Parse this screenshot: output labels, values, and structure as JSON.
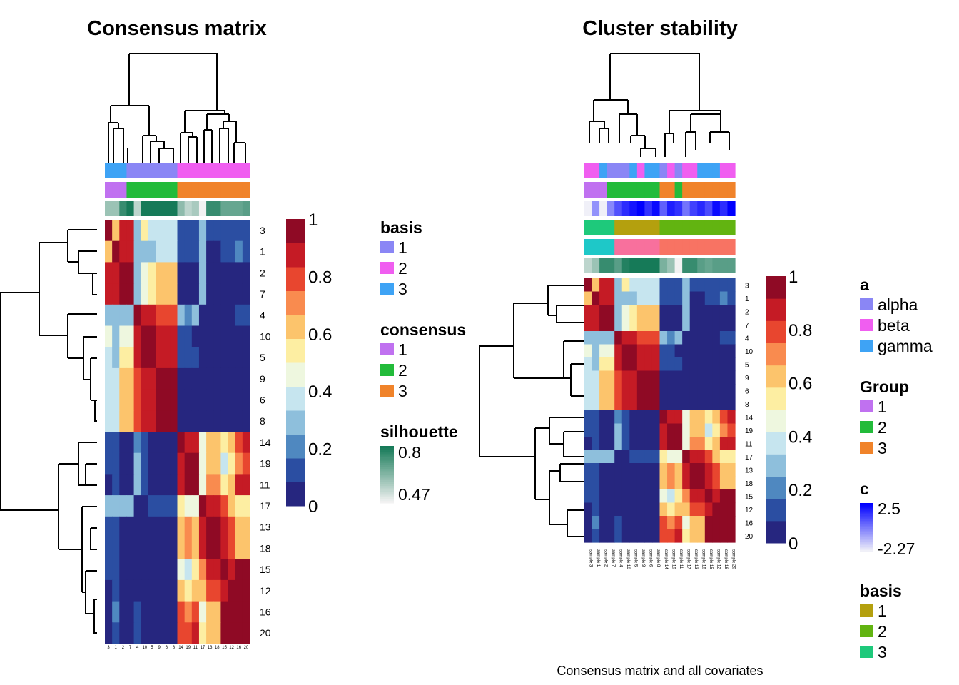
{
  "figure": {
    "caption": "Consensus matrix and all covariates"
  },
  "palettes": {
    "consensus": [
      "#26267f",
      "#2b4ea2",
      "#4f88c0",
      "#8ebfdc",
      "#c6e5ef",
      "#eef7df",
      "#fdeea2",
      "#fcc46c",
      "#f98b4f",
      "#e8462f",
      "#c51b25",
      "#8f0a25"
    ],
    "silhouette_low": "#f2f2f2",
    "silhouette_high": "#167a58",
    "c_low": "#f0f0f8",
    "c_high": "#0000ff"
  },
  "chart_data": [
    {
      "type": "heatmap",
      "title": "Consensus matrix",
      "row_order": [
        3,
        1,
        2,
        7,
        4,
        10,
        5,
        9,
        6,
        8,
        14,
        19,
        11,
        17,
        13,
        18,
        15,
        12,
        16,
        20
      ],
      "col_labels": [
        "3",
        "1",
        "2",
        "7",
        "4",
        "10",
        "5",
        "9",
        "6",
        "8",
        "14",
        "19",
        "11",
        "17",
        "13",
        "18",
        "15",
        "12",
        "16",
        "20"
      ],
      "value_range": [
        0,
        1
      ],
      "annotations": {
        "basis": [
          3,
          3,
          3,
          1,
          1,
          1,
          1,
          1,
          1,
          1,
          2,
          2,
          2,
          2,
          2,
          2,
          2,
          2,
          2,
          2
        ],
        "consensus": [
          1,
          1,
          1,
          2,
          2,
          2,
          2,
          2,
          2,
          2,
          3,
          3,
          3,
          3,
          3,
          3,
          3,
          3,
          3,
          3
        ],
        "silhouette": [
          0.6,
          0.6,
          0.75,
          0.8,
          0.55,
          0.8,
          0.8,
          0.8,
          0.8,
          0.8,
          0.62,
          0.55,
          0.58,
          0.47,
          0.75,
          0.75,
          0.68,
          0.68,
          0.68,
          0.7
        ]
      },
      "matrix": [
        [
          1.0,
          0.65,
          0.9,
          0.9,
          0.3,
          0.5,
          0.35,
          0.35,
          0.35,
          0.35,
          0.1,
          0.1,
          0.1,
          0.3,
          0.1,
          0.1,
          0.1,
          0.1,
          0.1,
          0.1
        ],
        [
          0.65,
          1.0,
          0.9,
          0.9,
          0.3,
          0.3,
          0.3,
          0.35,
          0.35,
          0.35,
          0.1,
          0.1,
          0.1,
          0.3,
          0.05,
          0.05,
          0.1,
          0.1,
          0.2,
          0.1
        ],
        [
          0.9,
          0.9,
          1.0,
          1.0,
          0.3,
          0.45,
          0.5,
          0.6,
          0.6,
          0.6,
          0.05,
          0.05,
          0.05,
          0.3,
          0.0,
          0.0,
          0.0,
          0.0,
          0.0,
          0.0
        ],
        [
          0.9,
          0.9,
          1.0,
          1.0,
          0.3,
          0.45,
          0.5,
          0.6,
          0.6,
          0.6,
          0.05,
          0.05,
          0.05,
          0.3,
          0.0,
          0.0,
          0.0,
          0.0,
          0.0,
          0.0
        ],
        [
          0.3,
          0.3,
          0.3,
          0.3,
          1.0,
          0.9,
          0.9,
          0.75,
          0.75,
          0.75,
          0.3,
          0.2,
          0.3,
          0.05,
          0.05,
          0.05,
          0.05,
          0.05,
          0.15,
          0.15
        ],
        [
          0.45,
          0.3,
          0.45,
          0.45,
          0.9,
          1.0,
          0.95,
          0.9,
          0.9,
          0.9,
          0.1,
          0.1,
          0.05,
          0.0,
          0.0,
          0.0,
          0.0,
          0.0,
          0.0,
          0.0
        ],
        [
          0.35,
          0.3,
          0.5,
          0.5,
          0.9,
          0.95,
          1.0,
          0.9,
          0.9,
          0.9,
          0.1,
          0.1,
          0.1,
          0.0,
          0.0,
          0.0,
          0.0,
          0.0,
          0.0,
          0.0
        ],
        [
          0.35,
          0.35,
          0.6,
          0.6,
          0.75,
          0.9,
          0.9,
          1.0,
          1.0,
          1.0,
          0.0,
          0.0,
          0.0,
          0.0,
          0.0,
          0.0,
          0.0,
          0.0,
          0.0,
          0.0
        ],
        [
          0.35,
          0.35,
          0.6,
          0.6,
          0.75,
          0.9,
          0.9,
          1.0,
          1.0,
          1.0,
          0.0,
          0.0,
          0.0,
          0.0,
          0.0,
          0.0,
          0.0,
          0.0,
          0.0,
          0.0
        ],
        [
          0.35,
          0.35,
          0.6,
          0.6,
          0.75,
          0.9,
          0.9,
          1.0,
          1.0,
          1.0,
          0.0,
          0.0,
          0.0,
          0.0,
          0.0,
          0.0,
          0.0,
          0.0,
          0.0,
          0.0
        ],
        [
          0.1,
          0.1,
          0.0,
          0.0,
          0.2,
          0.1,
          0.0,
          0.0,
          0.0,
          0.0,
          1.0,
          0.9,
          0.9,
          0.45,
          0.65,
          0.65,
          0.5,
          0.65,
          0.8,
          0.85
        ],
        [
          0.1,
          0.1,
          0.0,
          0.0,
          0.3,
          0.15,
          0.0,
          0.0,
          0.0,
          0.0,
          0.9,
          1.0,
          0.95,
          0.45,
          0.65,
          0.65,
          0.35,
          0.55,
          0.7,
          0.8
        ],
        [
          0.05,
          0.1,
          0.0,
          0.0,
          0.25,
          0.1,
          0.0,
          0.0,
          0.0,
          0.0,
          0.9,
          0.95,
          1.0,
          0.45,
          0.7,
          0.7,
          0.5,
          0.65,
          0.85,
          0.85
        ],
        [
          0.25,
          0.25,
          0.25,
          0.25,
          0.05,
          0.05,
          0.15,
          0.15,
          0.15,
          0.15,
          0.5,
          0.45,
          0.45,
          1.0,
          0.85,
          0.85,
          0.75,
          0.65,
          0.55,
          0.55
        ],
        [
          0.1,
          0.1,
          0.0,
          0.0,
          0.0,
          0.0,
          0.0,
          0.0,
          0.0,
          0.0,
          0.65,
          0.7,
          0.65,
          0.85,
          1.0,
          1.0,
          0.85,
          0.75,
          0.65,
          0.65
        ],
        [
          0.1,
          0.1,
          0.0,
          0.0,
          0.0,
          0.0,
          0.0,
          0.0,
          0.0,
          0.0,
          0.65,
          0.7,
          0.65,
          0.85,
          1.0,
          1.0,
          0.85,
          0.75,
          0.65,
          0.65
        ],
        [
          0.1,
          0.1,
          0.0,
          0.0,
          0.0,
          0.0,
          0.0,
          0.0,
          0.0,
          0.0,
          0.45,
          0.35,
          0.5,
          0.7,
          0.85,
          0.85,
          1.0,
          0.9,
          0.95,
          0.95
        ],
        [
          0.05,
          0.1,
          0.0,
          0.0,
          0.0,
          0.0,
          0.0,
          0.0,
          0.0,
          0.0,
          0.6,
          0.55,
          0.65,
          0.65,
          0.75,
          0.75,
          0.9,
          1.0,
          0.95,
          0.95
        ],
        [
          0.05,
          0.2,
          0.0,
          0.0,
          0.1,
          0.0,
          0.0,
          0.0,
          0.0,
          0.0,
          0.75,
          0.7,
          0.8,
          0.45,
          0.65,
          0.65,
          0.95,
          0.95,
          1.0,
          1.0
        ],
        [
          0.05,
          0.1,
          0.0,
          0.0,
          0.1,
          0.0,
          0.0,
          0.0,
          0.0,
          0.0,
          0.8,
          0.75,
          0.85,
          0.55,
          0.65,
          0.65,
          0.95,
          0.95,
          1.0,
          1.0
        ]
      ],
      "colorbar": {
        "ticks": [
          "1",
          "0.8",
          "0.6",
          "0.4",
          "0.2",
          "0"
        ]
      },
      "legends": [
        {
          "title": "basis",
          "labels": [
            "1",
            "2",
            "3"
          ],
          "colors": [
            "#8a86f5",
            "#f05ef0",
            "#3ea3f5"
          ]
        },
        {
          "title": "consensus",
          "labels": [
            "1",
            "2",
            "3"
          ],
          "colors": [
            "#c071f0",
            "#22bb3a",
            "#f0832a"
          ]
        },
        {
          "title": "silhouette",
          "labels": [
            "0.8",
            "0.47"
          ]
        }
      ]
    },
    {
      "type": "heatmap",
      "title": "Cluster stability",
      "row_order": [
        3,
        1,
        2,
        7,
        4,
        10,
        5,
        9,
        6,
        8,
        14,
        19,
        11,
        17,
        13,
        18,
        15,
        12,
        16,
        20
      ],
      "col_labels": [
        "sample 3",
        "sample 1",
        "sample 2",
        "sample 7",
        "sample 4",
        "sample 10",
        "sample 5",
        "sample 9",
        "sample 6",
        "sample 8",
        "sample 14",
        "sample 19",
        "sample 11",
        "sample 17",
        "sample 13",
        "sample 18",
        "sample 15",
        "sample 12",
        "sample 16",
        "sample 20"
      ],
      "value_range": [
        0,
        1
      ],
      "annotations": {
        "a": [
          "beta",
          "beta",
          "gamma",
          "alpha",
          "alpha",
          "alpha",
          "gamma",
          "beta",
          "gamma",
          "gamma",
          "alpha",
          "beta",
          "alpha",
          "beta",
          "beta",
          "gamma",
          "gamma",
          "gamma",
          "beta",
          "beta"
        ],
        "Group": [
          1,
          1,
          1,
          2,
          2,
          2,
          2,
          2,
          2,
          2,
          3,
          3,
          2,
          3,
          3,
          3,
          3,
          3,
          3,
          3
        ],
        "c": [
          -2.27,
          -0.4,
          -2.27,
          -0.2,
          0.9,
          1.6,
          2.1,
          2.5,
          1.5,
          2.3,
          0.6,
          1.9,
          1.5,
          0.2,
          1.2,
          1.7,
          1.0,
          2.3,
          1.6,
          2.5
        ],
        "basis": [
          3,
          3,
          3,
          3,
          1,
          1,
          1,
          1,
          1,
          1,
          2,
          2,
          2,
          2,
          2,
          2,
          2,
          2,
          2,
          2
        ],
        "Group_color_2": [
          1,
          1,
          1,
          1,
          2,
          2,
          2,
          2,
          2,
          2,
          3,
          3,
          3,
          3,
          3,
          3,
          3,
          3,
          3,
          3
        ],
        "silhouette": [
          0.55,
          0.6,
          0.75,
          0.75,
          0.7,
          0.78,
          0.8,
          0.8,
          0.8,
          0.8,
          0.65,
          0.6,
          0.47,
          0.75,
          0.75,
          0.7,
          0.68,
          0.7,
          0.7,
          0.7
        ]
      },
      "colorbar": {
        "ticks": [
          "1",
          "0.8",
          "0.6",
          "0.4",
          "0.2",
          "0"
        ]
      },
      "legends": [
        {
          "title": "a",
          "labels": [
            "alpha",
            "beta",
            "gamma"
          ],
          "colors": [
            "#8a86f5",
            "#f05ef0",
            "#3ea3f5"
          ]
        },
        {
          "title": "Group",
          "labels": [
            "1",
            "2",
            "3"
          ],
          "colors": [
            "#c071f0",
            "#22bb3a",
            "#f0832a"
          ]
        },
        {
          "title": "c",
          "labels": [
            "2.5",
            "-2.27"
          ]
        },
        {
          "title": "basis",
          "labels": [
            "1",
            "2",
            "3"
          ],
          "colors": [
            "#b4a00e",
            "#62b411",
            "#1ec97b"
          ]
        }
      ],
      "extra_rows": {
        "row4": {
          "colors_by_basis": [
            "#b4a00e",
            "#62b411",
            "#1ec97b"
          ]
        },
        "row5": {
          "colors": [
            "#1ec8c8",
            "#f8709d",
            "#f87363"
          ]
        }
      }
    }
  ]
}
